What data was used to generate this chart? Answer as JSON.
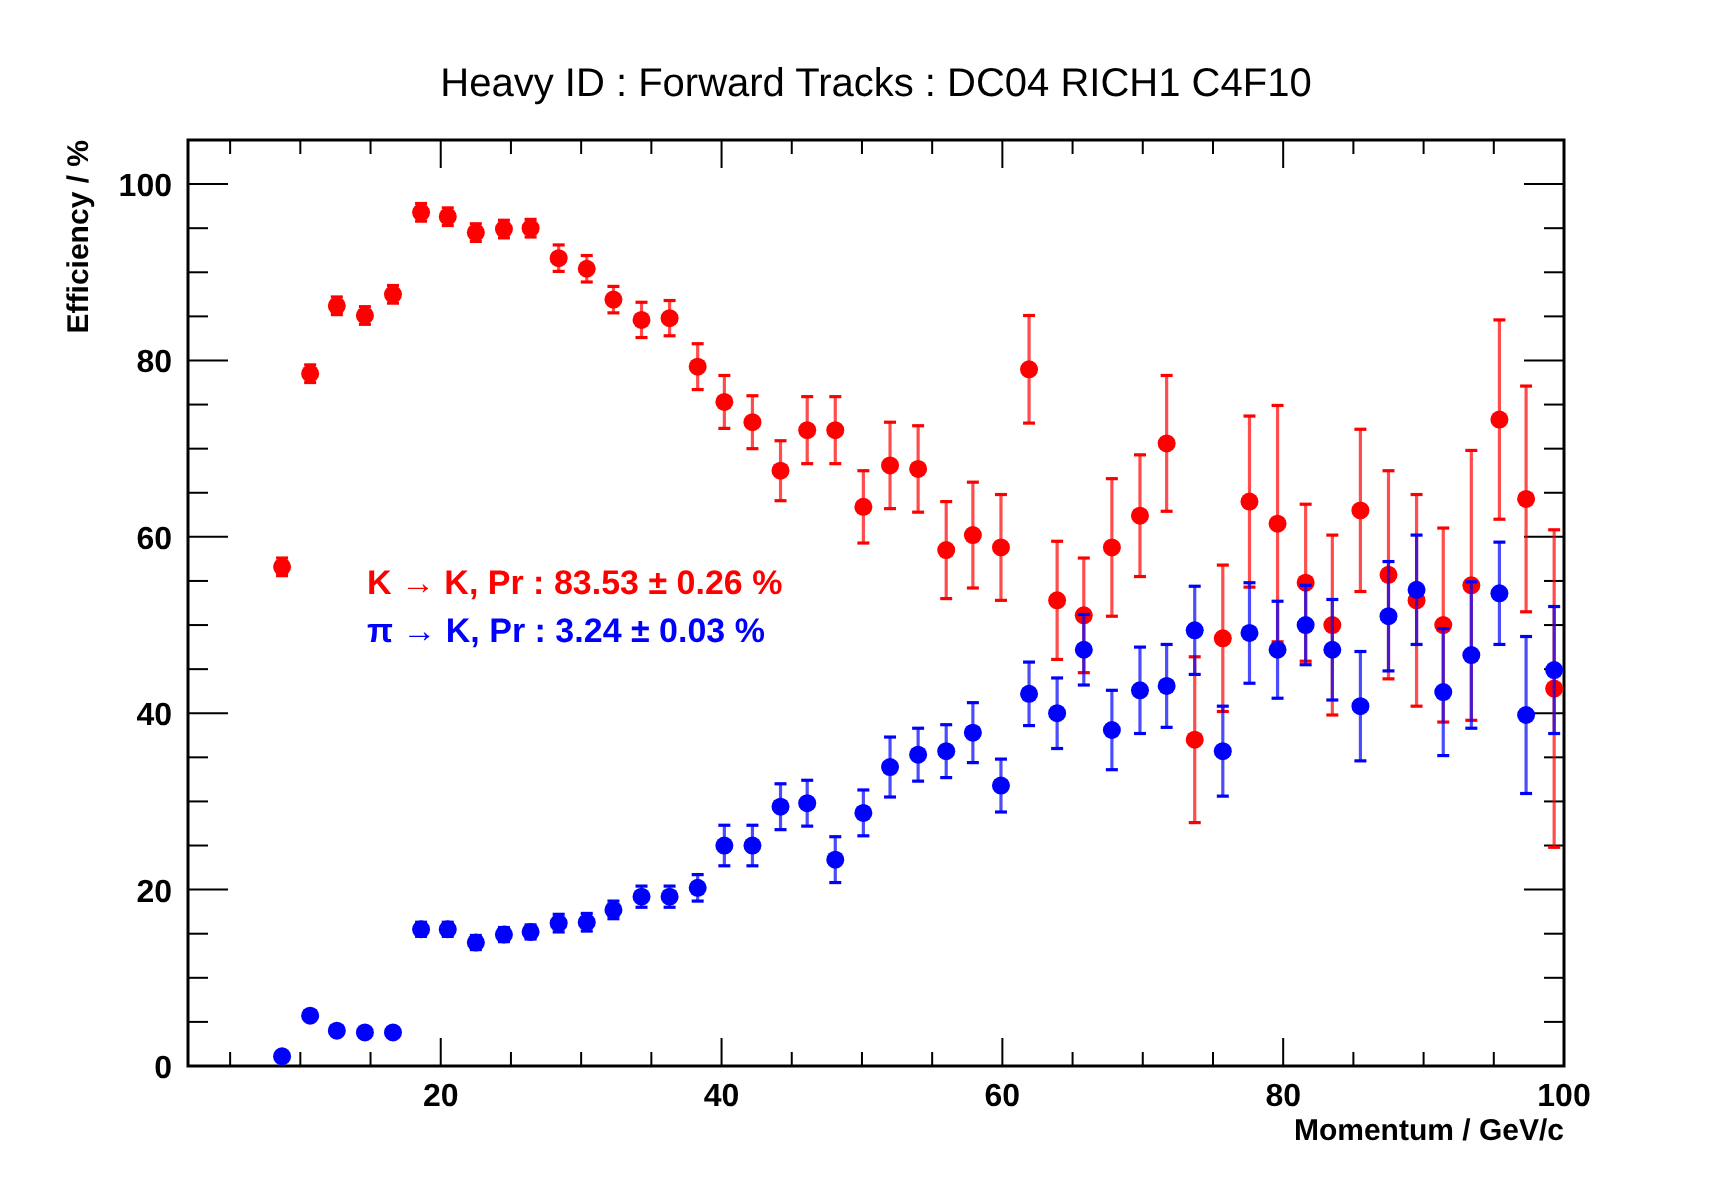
{
  "chart_data": {
    "type": "scatter",
    "title": "Heavy ID : Forward Tracks : DC04 RICH1 C4F10",
    "xlabel": "Momentum / GeV/c",
    "ylabel": "Efficiency / %",
    "x": [
      8.7,
      10.7,
      12.6,
      14.6,
      16.6,
      18.6,
      20.5,
      22.5,
      24.5,
      26.4,
      28.4,
      30.4,
      32.3,
      34.3,
      36.3,
      38.3,
      40.2,
      42.2,
      44.2,
      46.1,
      48.1,
      50.1,
      52.0,
      54.0,
      56.0,
      57.9,
      59.9,
      61.9,
      63.9,
      65.8,
      67.8,
      69.8,
      71.7,
      73.7,
      75.7,
      77.6,
      79.6,
      81.6,
      83.5,
      85.5,
      87.5,
      89.5,
      91.4,
      93.4,
      95.4,
      97.3,
      99.3
    ],
    "series": [
      {
        "name": "K → K, Pr : 83.53 ± 0.26 %",
        "color": "#ff0000",
        "values": [
          56.6,
          78.5,
          86.2,
          85.1,
          87.5,
          96.8,
          96.3,
          94.5,
          94.9,
          95.0,
          91.6,
          90.4,
          86.9,
          84.6,
          84.8,
          79.3,
          75.3,
          73.0,
          67.5,
          72.1,
          72.1,
          63.4,
          68.1,
          67.7,
          58.5,
          60.2,
          58.8,
          79.0,
          52.8,
          51.1,
          58.8,
          62.4,
          70.6,
          37.0,
          48.5,
          64.0,
          61.5,
          54.8,
          50.0,
          63.0,
          55.7,
          52.8,
          50.0,
          54.5,
          73.3,
          64.3,
          42.8
        ],
        "errors": [
          1,
          1,
          1,
          1,
          1,
          1,
          1,
          1,
          1,
          1,
          1.5,
          1.5,
          1.5,
          2,
          2,
          2.6,
          3,
          3,
          3.4,
          3.8,
          3.8,
          4.1,
          4.9,
          4.9,
          5.5,
          6,
          6,
          6.1,
          6.7,
          6.5,
          7.8,
          6.9,
          7.7,
          9.4,
          8.3,
          9.7,
          13.4,
          8.9,
          10.2,
          9.2,
          11.8,
          12,
          11,
          15.3,
          11.3,
          12.8,
          18
        ]
      },
      {
        "name": "π → K, Pr : 3.24 ± 0.03 %",
        "color": "#0000ff",
        "values": [
          1.1,
          5.7,
          4.0,
          3.8,
          3.8,
          15.5,
          15.5,
          14.0,
          14.9,
          15.2,
          16.2,
          16.3,
          17.7,
          19.2,
          19.2,
          20.2,
          25.0,
          25.0,
          29.4,
          29.8,
          23.4,
          28.7,
          33.9,
          35.3,
          35.7,
          37.8,
          31.8,
          42.2,
          40.0,
          47.2,
          38.1,
          42.6,
          43.1,
          49.4,
          35.7,
          49.1,
          47.2,
          50.0,
          47.2,
          40.8,
          51.0,
          54.0,
          42.4,
          46.6,
          53.6,
          39.8,
          44.9
        ],
        "errors": [
          0.5,
          0.5,
          0.5,
          0.5,
          0.5,
          0.8,
          0.8,
          0.8,
          0.8,
          0.8,
          1,
          1,
          1,
          1.2,
          1.2,
          1.5,
          2.3,
          2.3,
          2.6,
          2.6,
          2.6,
          2.6,
          3.4,
          3,
          3,
          3.4,
          3,
          3.6,
          4,
          4,
          4.5,
          4.9,
          4.7,
          5,
          5.1,
          5.7,
          5.5,
          4.5,
          5.7,
          6.2,
          6.2,
          6.2,
          7.2,
          8.3,
          5.8,
          8.9,
          7.2
        ]
      }
    ],
    "xlim": [
      2,
      100
    ],
    "ylim": [
      0,
      105
    ],
    "xticks": [
      {
        "value": 5,
        "label": null
      },
      {
        "value": 10,
        "label": null
      },
      {
        "value": 15,
        "label": null
      },
      20,
      {
        "value": 25,
        "label": null
      },
      {
        "value": 30,
        "label": null
      },
      {
        "value": 35,
        "label": null
      },
      40,
      {
        "value": 45,
        "label": null
      },
      {
        "value": 50,
        "label": null
      },
      {
        "value": 55,
        "label": null
      },
      60,
      {
        "value": 65,
        "label": null
      },
      {
        "value": 70,
        "label": null
      },
      {
        "value": 75,
        "label": null
      },
      80,
      {
        "value": 85,
        "label": null
      },
      {
        "value": 90,
        "label": null
      },
      {
        "value": 95,
        "label": null
      },
      100
    ],
    "yticks": [
      0,
      {
        "value": 5,
        "label": null
      },
      {
        "value": 10,
        "label": null
      },
      {
        "value": 15,
        "label": null
      },
      20,
      {
        "value": 25,
        "label": null
      },
      {
        "value": 30,
        "label": null
      },
      {
        "value": 35,
        "label": null
      },
      40,
      {
        "value": 45,
        "label": null
      },
      {
        "value": 50,
        "label": null
      },
      {
        "value": 55,
        "label": null
      },
      60,
      {
        "value": 65,
        "label": null
      },
      {
        "value": 70,
        "label": null
      },
      {
        "value": 75,
        "label": null
      },
      80,
      {
        "value": 85,
        "label": null
      },
      {
        "value": 90,
        "label": null
      },
      {
        "value": 95,
        "label": null
      },
      100,
      {
        "value": 105,
        "label": null
      }
    ],
    "marker": "circle",
    "grid": false,
    "legend": "center left"
  }
}
